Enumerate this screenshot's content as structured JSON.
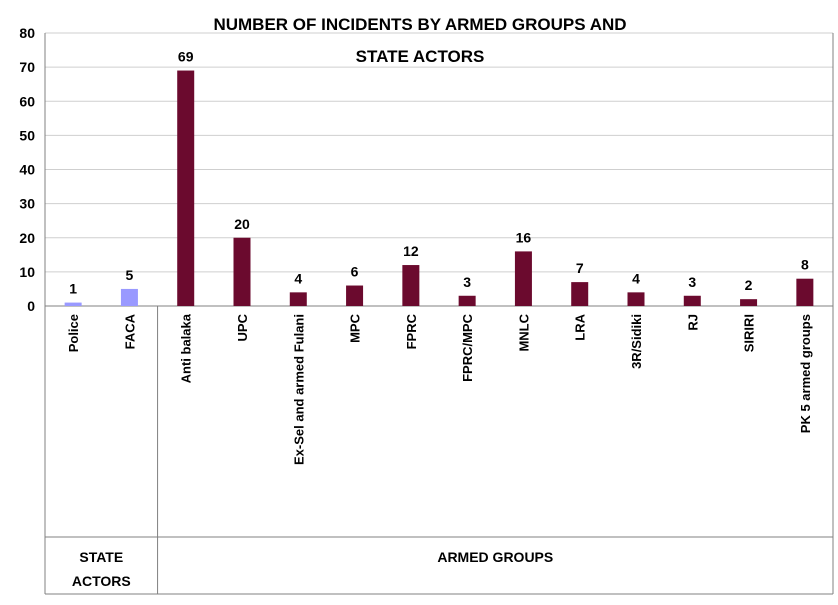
{
  "chart_data": {
    "type": "bar",
    "title_lines": [
      "NUMBER OF INCIDENTS BY ARMED GROUPS AND",
      "STATE ACTORS"
    ],
    "xlabel": "",
    "ylabel": "",
    "ylim": [
      0,
      80
    ],
    "yticks": [
      0,
      10,
      20,
      30,
      40,
      50,
      60,
      70,
      80
    ],
    "grid": true,
    "legend": "none",
    "categories": [
      "Police",
      "FACA",
      "Anti balaka",
      "UPC",
      "Ex-Sel and armed Fulani",
      "MPC",
      "FPRC",
      "FPRC/MPC",
      "MNLC",
      "LRA",
      "3R/Sidiki",
      "RJ",
      "SIRIRI",
      "PK 5 armed groups"
    ],
    "values": [
      1,
      5,
      69,
      20,
      4,
      6,
      12,
      3,
      16,
      7,
      4,
      3,
      2,
      8
    ],
    "data_labels": [
      "1",
      "5",
      "69",
      "20",
      "4",
      "6",
      "12",
      "3",
      "16",
      "7",
      "4",
      "3",
      "2",
      "8"
    ],
    "groups": [
      {
        "label_lines": [
          "STATE",
          "ACTORS"
        ],
        "count": 2,
        "color": "#9999ff"
      },
      {
        "label_lines": [
          "ARMED GROUPS"
        ],
        "count": 12,
        "color": "#6b0a2e"
      }
    ]
  }
}
